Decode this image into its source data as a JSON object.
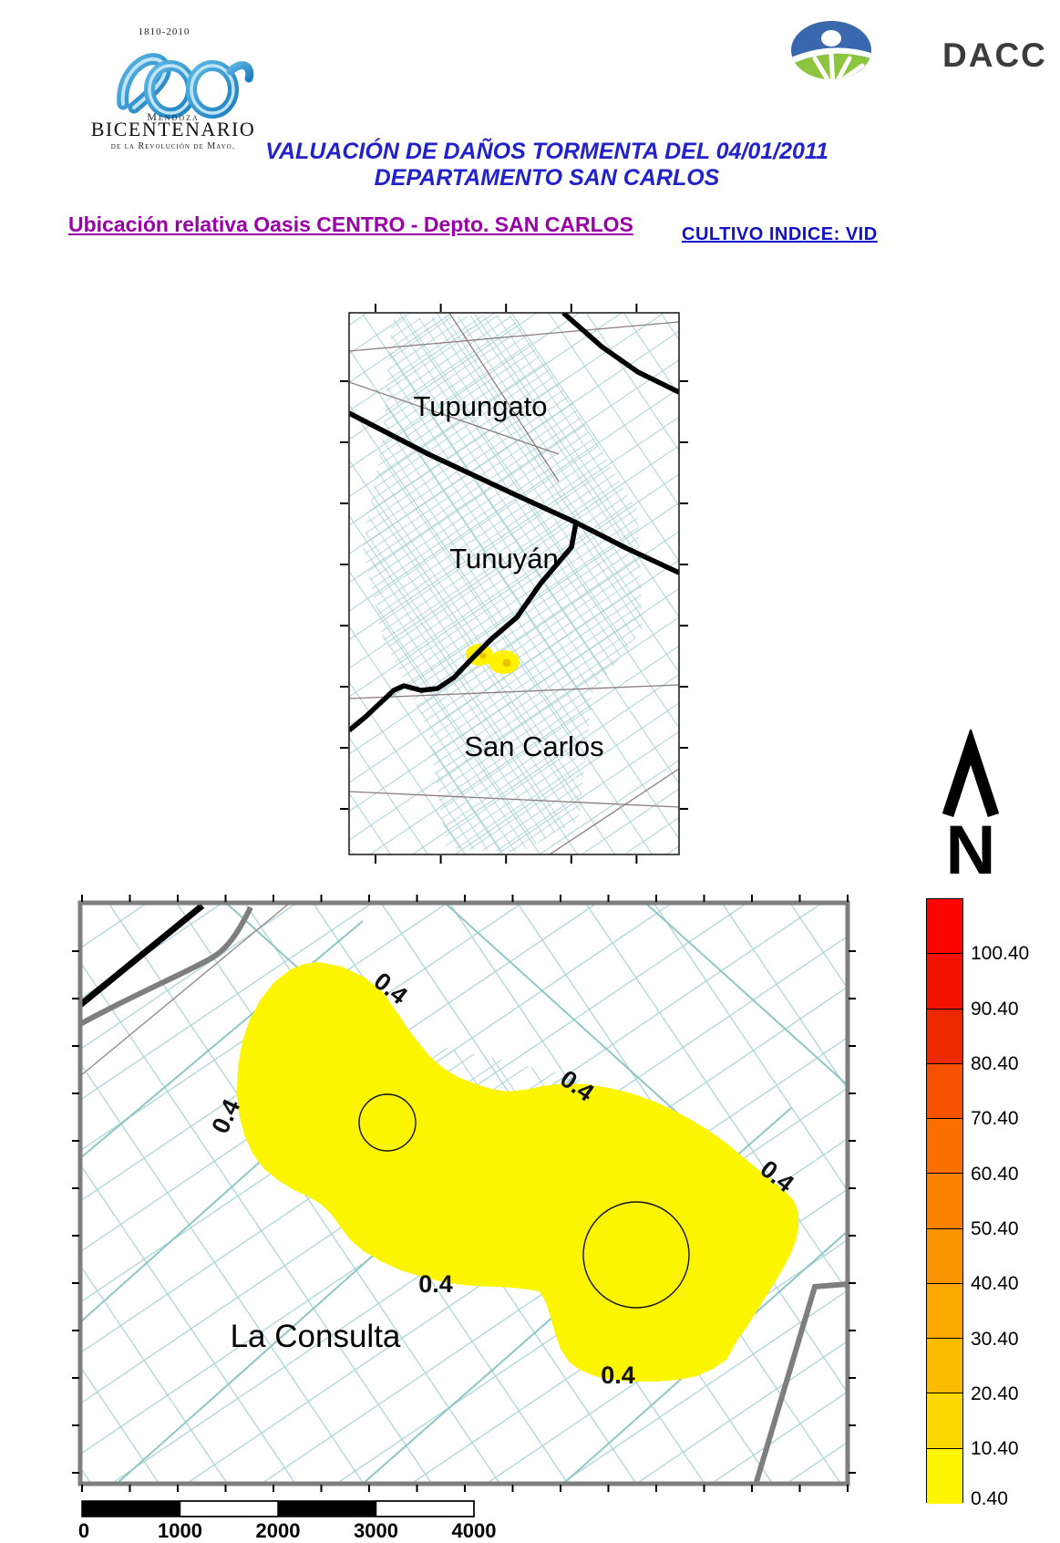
{
  "header": {
    "bicentenario_logo": {
      "years": "1810-2010",
      "numeral": "200",
      "region": "Mendoza",
      "name": "BICENTENARIO",
      "tagline": "de la Revolución de Mayo."
    },
    "dacc_logo": {
      "acronym": "DACC"
    },
    "title_line1": "VALUACIÓN DE DAÑOS TORMENTA DEL 04/01/2011",
    "title_line2": "DEPARTAMENTO SAN CARLOS",
    "location_subtitle": "Ubicación relativa Oasis CENTRO - Depto. SAN CARLOS",
    "crop_subtitle": "CULTIVO INDICE: VID"
  },
  "locator_map": {
    "label_top": "Tupungato",
    "label_middle": "Tunuyán",
    "label_bottom": "San Carlos",
    "highlight_color": "#FFF200"
  },
  "north_arrow_label": "N",
  "main_map": {
    "place_label": "La Consulta",
    "contour_labels": [
      "0.4",
      "0.4",
      "0.4",
      "0.4",
      "0.4",
      "0.4"
    ],
    "region_fill": "#FCF500",
    "inner_region_fill": "#F7CB35",
    "parcel_line_color": "#A8D3D5"
  },
  "legend": {
    "items": [
      {
        "color": "#FB0500",
        "label": "100.40"
      },
      {
        "color": "#F11200",
        "label": "90.40"
      },
      {
        "color": "#EE2900",
        "label": "80.40"
      },
      {
        "color": "#F65200",
        "label": "70.40"
      },
      {
        "color": "#F97000",
        "label": "60.40"
      },
      {
        "color": "#FA8100",
        "label": "50.40"
      },
      {
        "color": "#FA9300",
        "label": "40.40"
      },
      {
        "color": "#FAA700",
        "label": "30.40"
      },
      {
        "color": "#FBBC00",
        "label": "20.40"
      },
      {
        "color": "#FBD800",
        "label": "10.40"
      },
      {
        "color": "#FDF400",
        "label": "0.40"
      }
    ]
  },
  "scale_bar": {
    "labels": [
      "0",
      "1000",
      "2000",
      "3000",
      "4000"
    ]
  }
}
